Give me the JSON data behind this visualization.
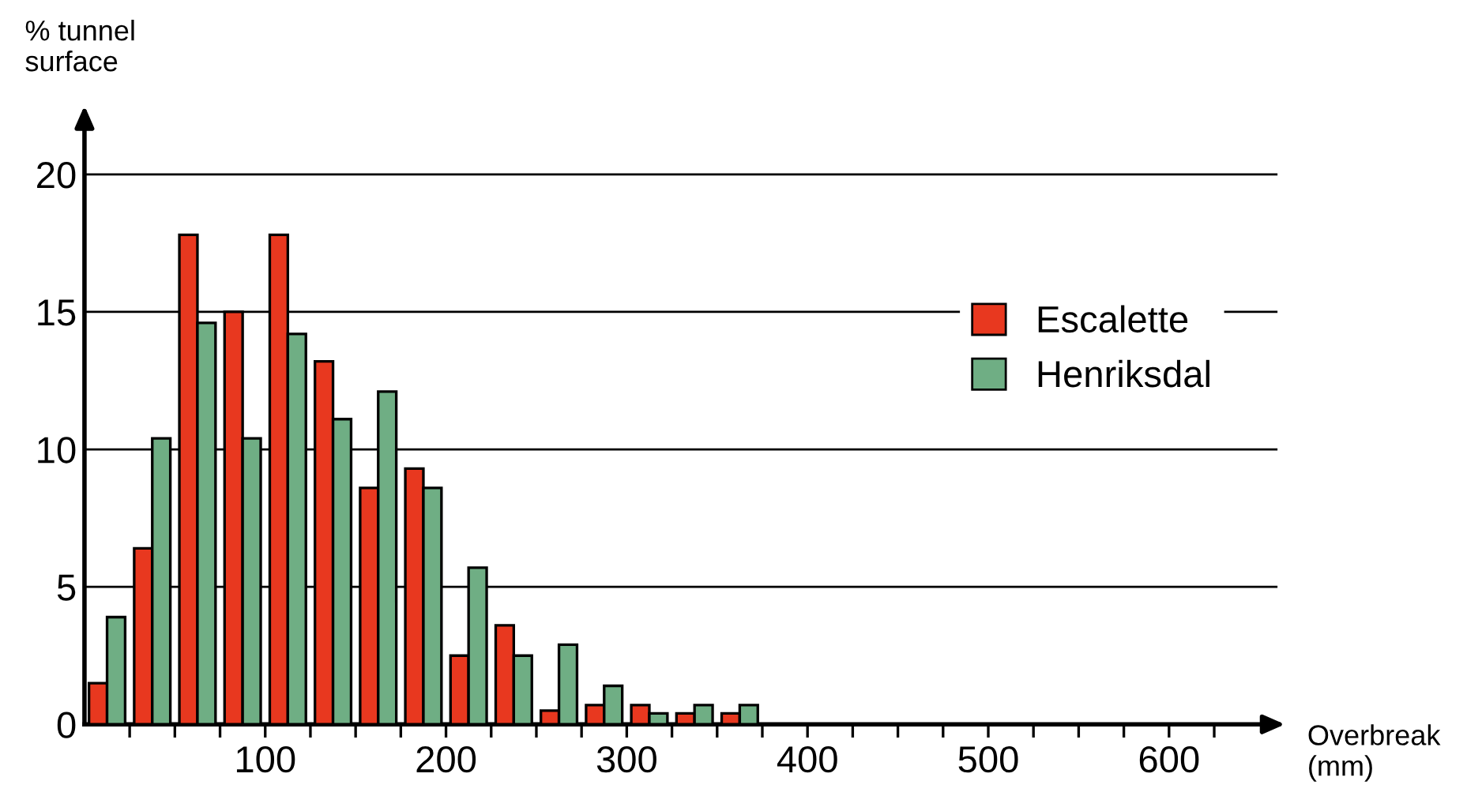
{
  "chart_data": {
    "type": "bar",
    "x": [
      12.5,
      37.5,
      62.5,
      87.5,
      112.5,
      137.5,
      162.5,
      187.5,
      212.5,
      237.5,
      262.5,
      287.5,
      312.5,
      337.5,
      362.5
    ],
    "series": [
      {
        "name": "Escalette",
        "color": "#e8381f",
        "values": [
          1.5,
          6.4,
          17.8,
          15.0,
          17.8,
          13.2,
          8.6,
          9.3,
          2.5,
          3.6,
          0.5,
          0.7,
          0.7,
          0.4,
          0.4
        ]
      },
      {
        "name": "Henriksdal",
        "color": "#6fae84",
        "values": [
          3.9,
          10.4,
          14.6,
          10.4,
          14.2,
          11.1,
          12.1,
          8.6,
          5.7,
          2.5,
          2.9,
          1.4,
          0.4,
          0.7,
          0.7
        ]
      }
    ],
    "xlabel": "Overbreak\n(mm)",
    "ylabel": "% tunnel\nsurface",
    "xlim": [
      0,
      660
    ],
    "ylim": [
      0,
      22
    ],
    "xticks": [
      {
        "value": 25,
        "label": null
      },
      {
        "value": 50,
        "label": null
      },
      {
        "value": 75,
        "label": null
      },
      100,
      {
        "value": 125,
        "label": null
      },
      {
        "value": 150,
        "label": null
      },
      {
        "value": 175,
        "label": null
      },
      200,
      {
        "value": 225,
        "label": null
      },
      {
        "value": 250,
        "label": null
      },
      {
        "value": 275,
        "label": null
      },
      300,
      {
        "value": 325,
        "label": null
      },
      {
        "value": 350,
        "label": null
      },
      {
        "value": 375,
        "label": null
      },
      400,
      {
        "value": 425,
        "label": null
      },
      {
        "value": 450,
        "label": null
      },
      {
        "value": 475,
        "label": null
      },
      500,
      {
        "value": 525,
        "label": null
      },
      {
        "value": 550,
        "label": null
      },
      {
        "value": 575,
        "label": null
      },
      600,
      {
        "value": 625,
        "label": null
      }
    ],
    "yticks": [
      0,
      5,
      10,
      15,
      20
    ],
    "grid": "y",
    "legend": "right"
  }
}
